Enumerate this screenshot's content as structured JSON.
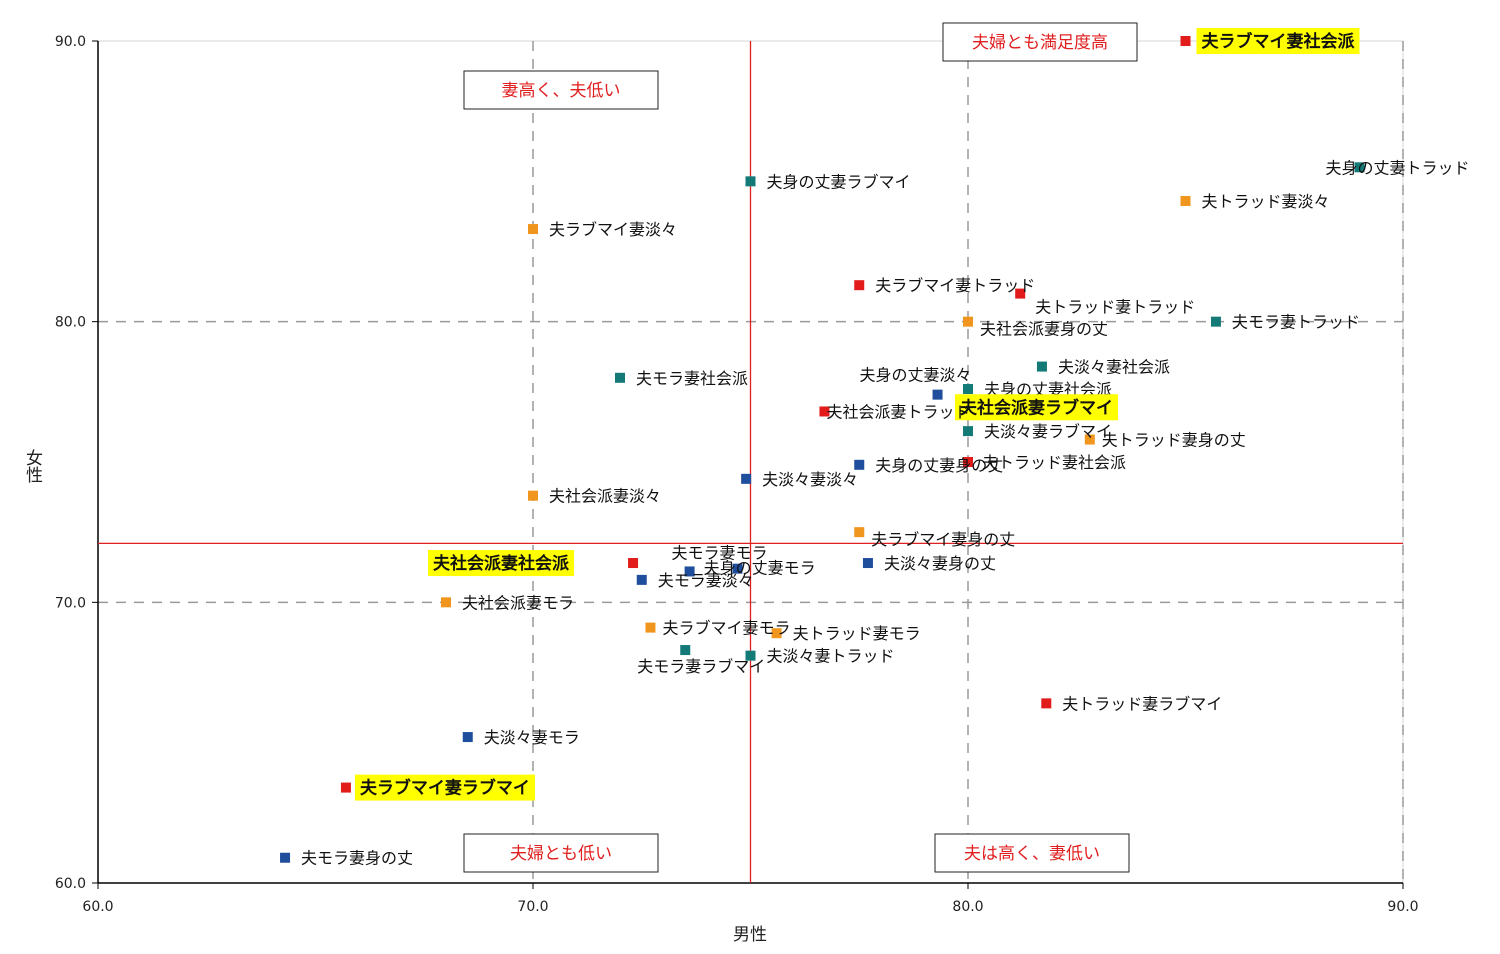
{
  "chart_data": {
    "type": "scatter",
    "xlabel": "男性",
    "ylabel": "女性",
    "xlim": [
      60.0,
      90.0
    ],
    "ylim": [
      60.0,
      90.0
    ],
    "x_ticks": [
      "60.0",
      "70.0",
      "80.0",
      "90.0"
    ],
    "y_ticks": [
      "60.0",
      "70.0",
      "80.0",
      "90.0"
    ],
    "grid": "dashed at 70 and 80 (both axes), 90 on x",
    "reference_lines": {
      "x": 75.0,
      "y": 72.1,
      "color": "#e02020"
    },
    "colors": {
      "red": "#e21b1b",
      "orange": "#f0961e",
      "teal": "#137a78",
      "blue": "#1f4e9c",
      "highlight": "#ffff00",
      "quadrant_text": "#e02020"
    },
    "quadrant_labels": [
      {
        "text": "夫婦とも満足度高",
        "position": "top-right"
      },
      {
        "text": "妻高く、夫低い",
        "position": "top-left"
      },
      {
        "text": "夫婦とも低い",
        "position": "bottom-left"
      },
      {
        "text": "夫は高く、妻低い",
        "position": "bottom-right"
      }
    ],
    "points": [
      {
        "label": "夫ラブマイ妻社会派",
        "x": 85.0,
        "y": 90.0,
        "color": "red",
        "highlight": true
      },
      {
        "label": "夫身の丈妻トラッド",
        "x": 89.0,
        "y": 85.5,
        "color": "teal"
      },
      {
        "label": "夫トラッド妻淡々",
        "x": 85.0,
        "y": 84.3,
        "color": "orange"
      },
      {
        "label": "夫身の丈妻ラブマイ",
        "x": 75.0,
        "y": 85.0,
        "color": "teal"
      },
      {
        "label": "夫ラブマイ妻淡々",
        "x": 70.0,
        "y": 83.3,
        "color": "orange"
      },
      {
        "label": "夫ラブマイ妻トラッド",
        "x": 77.5,
        "y": 81.3,
        "color": "red"
      },
      {
        "label": "夫トラッド妻トラッド",
        "x": 81.2,
        "y": 81.0,
        "color": "red"
      },
      {
        "label": "夫モラ妻トラッド",
        "x": 85.7,
        "y": 80.0,
        "color": "teal"
      },
      {
        "label": "夫社会派妻身の丈",
        "x": 80.0,
        "y": 80.0,
        "color": "orange"
      },
      {
        "label": "夫淡々妻社会派",
        "x": 81.7,
        "y": 78.4,
        "color": "teal"
      },
      {
        "label": "夫モラ妻社会派",
        "x": 72.0,
        "y": 78.0,
        "color": "teal"
      },
      {
        "label": "夫身の丈妻淡々",
        "x": 79.3,
        "y": 77.4,
        "color": "blue"
      },
      {
        "label": "夫身の丈妻社会派",
        "x": 80.0,
        "y": 77.6,
        "color": "teal"
      },
      {
        "label": "夫社会派妻ラブマイ",
        "x": 80.0,
        "y": 77.2,
        "color": "red",
        "highlight": true
      },
      {
        "label": "夫社会派妻トラッド",
        "x": 76.7,
        "y": 76.8,
        "color": "red"
      },
      {
        "label": "夫淡々妻ラブマイ",
        "x": 80.0,
        "y": 76.1,
        "color": "teal"
      },
      {
        "label": "夫トラッド妻身の丈",
        "x": 82.8,
        "y": 75.8,
        "color": "orange"
      },
      {
        "label": "夫身の丈妻身の丈",
        "x": 77.5,
        "y": 74.9,
        "color": "blue"
      },
      {
        "label": "夫トラッド妻社会派",
        "x": 80.0,
        "y": 75.0,
        "color": "red"
      },
      {
        "label": "夫淡々妻淡々",
        "x": 74.9,
        "y": 74.4,
        "color": "blue"
      },
      {
        "label": "夫社会派妻淡々",
        "x": 70.0,
        "y": 73.8,
        "color": "orange"
      },
      {
        "label": "夫ラブマイ妻身の丈",
        "x": 77.5,
        "y": 72.5,
        "color": "orange"
      },
      {
        "label": "夫社会派妻社会派",
        "x": 72.3,
        "y": 71.4,
        "color": "red",
        "highlight": true
      },
      {
        "label": "夫モラ妻モラ",
        "x": 74.7,
        "y": 71.2,
        "color": "blue"
      },
      {
        "label": "夫身の丈妻モラ",
        "x": 73.6,
        "y": 71.1,
        "color": "blue"
      },
      {
        "label": "夫淡々妻身の丈",
        "x": 77.7,
        "y": 71.4,
        "color": "blue"
      },
      {
        "label": "夫モラ妻淡々",
        "x": 72.5,
        "y": 70.8,
        "color": "blue"
      },
      {
        "label": "夫社会派妻モラ",
        "x": 68.0,
        "y": 70.0,
        "color": "orange"
      },
      {
        "label": "夫ラブマイ妻モラ",
        "x": 72.7,
        "y": 69.1,
        "color": "orange"
      },
      {
        "label": "夫トラッド妻モラ",
        "x": 75.6,
        "y": 68.9,
        "color": "orange"
      },
      {
        "label": "夫モラ妻ラブマイ",
        "x": 73.5,
        "y": 68.3,
        "color": "teal"
      },
      {
        "label": "夫淡々妻トラッド",
        "x": 75.0,
        "y": 68.1,
        "color": "teal"
      },
      {
        "label": "夫トラッド妻ラブマイ",
        "x": 81.8,
        "y": 66.4,
        "color": "red"
      },
      {
        "label": "夫淡々妻モラ",
        "x": 68.5,
        "y": 65.2,
        "color": "blue"
      },
      {
        "label": "夫ラブマイ妻ラブマイ",
        "x": 65.7,
        "y": 63.4,
        "color": "red",
        "highlight": true
      },
      {
        "label": "夫モラ妻身の丈",
        "x": 64.3,
        "y": 60.9,
        "color": "blue"
      }
    ]
  }
}
